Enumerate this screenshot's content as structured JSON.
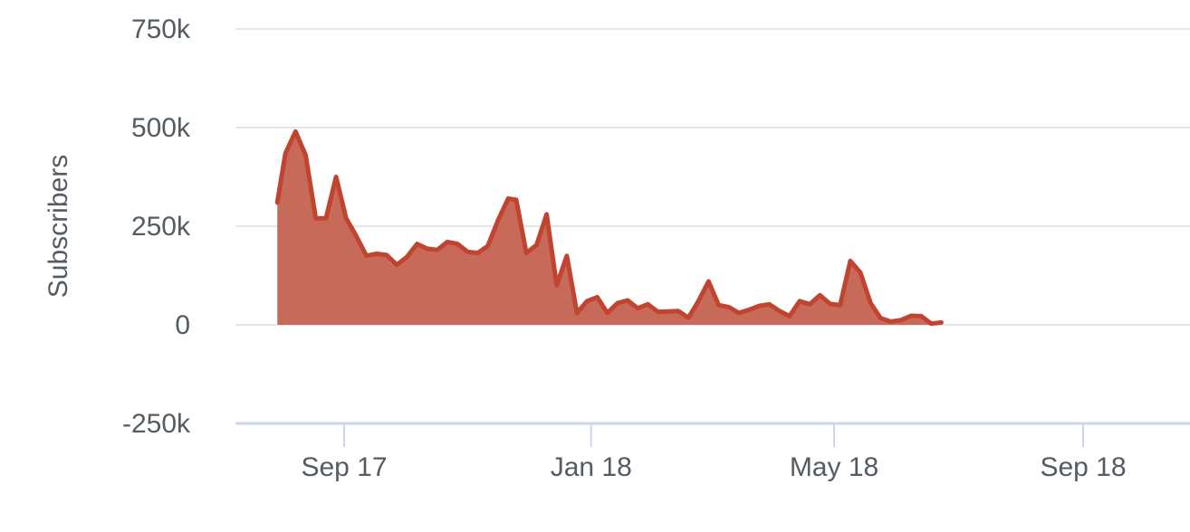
{
  "chart_data": {
    "type": "area",
    "title": "",
    "xlabel": "",
    "ylabel": "Subscribers",
    "ylim": [
      -250000,
      750000
    ],
    "y_ticks": [
      {
        "value": 750000,
        "label": "750k"
      },
      {
        "value": 500000,
        "label": "500k"
      },
      {
        "value": 250000,
        "label": "250k"
      },
      {
        "value": 0,
        "label": "0"
      },
      {
        "value": -250000,
        "label": "-250k"
      }
    ],
    "x_ticks": [
      {
        "date": "2017-09-01",
        "label": "Sep 17"
      },
      {
        "date": "2018-01-01",
        "label": "Jan 18"
      },
      {
        "date": "2018-05-01",
        "label": "May 18"
      },
      {
        "date": "2018-09-01",
        "label": "Sep 18"
      }
    ],
    "xlim": [
      "2017-07-20",
      "2018-11-20"
    ],
    "grid": true,
    "legend": "none",
    "series": [
      {
        "color": "#c0442f",
        "fill": "#c86a59",
        "points": [
          [
            "2017-07-30",
            310000
          ],
          [
            "2017-08-03",
            435000
          ],
          [
            "2017-08-08",
            490000
          ],
          [
            "2017-08-13",
            430000
          ],
          [
            "2017-08-18",
            270000
          ],
          [
            "2017-08-23",
            270000
          ],
          [
            "2017-08-28",
            375000
          ],
          [
            "2017-09-02",
            270000
          ],
          [
            "2017-09-07",
            225000
          ],
          [
            "2017-09-12",
            175000
          ],
          [
            "2017-09-17",
            180000
          ],
          [
            "2017-09-22",
            177000
          ],
          [
            "2017-09-27",
            152000
          ],
          [
            "2017-10-02",
            172000
          ],
          [
            "2017-10-07",
            205000
          ],
          [
            "2017-10-12",
            193000
          ],
          [
            "2017-10-17",
            190000
          ],
          [
            "2017-10-22",
            210000
          ],
          [
            "2017-10-27",
            205000
          ],
          [
            "2017-11-01",
            185000
          ],
          [
            "2017-11-06",
            182000
          ],
          [
            "2017-11-11",
            200000
          ],
          [
            "2017-11-16",
            265000
          ],
          [
            "2017-11-21",
            320000
          ],
          [
            "2017-11-25",
            317000
          ],
          [
            "2017-11-30",
            182000
          ],
          [
            "2017-12-05",
            202000
          ],
          [
            "2017-12-10",
            280000
          ],
          [
            "2017-12-15",
            100000
          ],
          [
            "2017-12-20",
            175000
          ],
          [
            "2017-12-25",
            30000
          ],
          [
            "2017-12-30",
            60000
          ],
          [
            "2018-01-04",
            70000
          ],
          [
            "2018-01-09",
            30000
          ],
          [
            "2018-01-14",
            55000
          ],
          [
            "2018-01-19",
            62000
          ],
          [
            "2018-01-24",
            42000
          ],
          [
            "2018-01-29",
            52000
          ],
          [
            "2018-02-03",
            33000
          ],
          [
            "2018-02-08",
            34000
          ],
          [
            "2018-02-13",
            35000
          ],
          [
            "2018-02-18",
            18000
          ],
          [
            "2018-02-23",
            60000
          ],
          [
            "2018-02-28",
            110000
          ],
          [
            "2018-03-05",
            50000
          ],
          [
            "2018-03-10",
            45000
          ],
          [
            "2018-03-15",
            30000
          ],
          [
            "2018-03-20",
            38000
          ],
          [
            "2018-03-25",
            48000
          ],
          [
            "2018-03-30",
            52000
          ],
          [
            "2018-04-04",
            35000
          ],
          [
            "2018-04-09",
            22000
          ],
          [
            "2018-04-14",
            60000
          ],
          [
            "2018-04-19",
            52000
          ],
          [
            "2018-04-24",
            75000
          ],
          [
            "2018-04-29",
            53000
          ],
          [
            "2018-05-04",
            50000
          ],
          [
            "2018-05-09",
            162000
          ],
          [
            "2018-05-14",
            132000
          ],
          [
            "2018-05-19",
            55000
          ],
          [
            "2018-05-24",
            17000
          ],
          [
            "2018-05-29",
            8000
          ],
          [
            "2018-06-03",
            12000
          ],
          [
            "2018-06-08",
            23000
          ],
          [
            "2018-06-13",
            22000
          ],
          [
            "2018-06-18",
            3000
          ],
          [
            "2018-06-23",
            6000
          ]
        ]
      }
    ]
  }
}
